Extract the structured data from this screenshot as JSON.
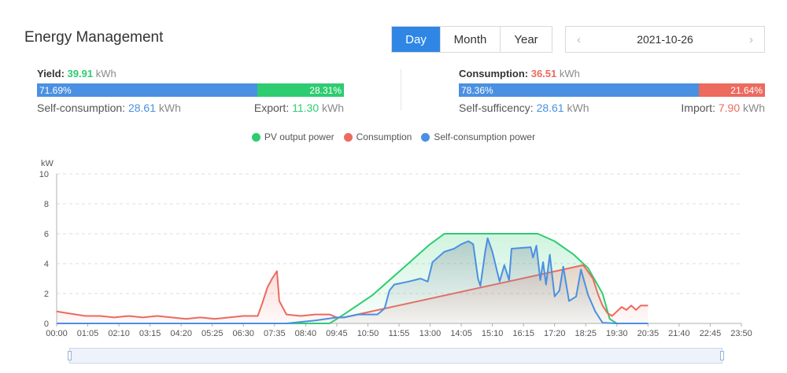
{
  "header": {
    "title": "Energy Management"
  },
  "period_tabs": [
    "Day",
    "Month",
    "Year"
  ],
  "active_tab": "Day",
  "date": {
    "value": "2021-10-26",
    "prev_icon": "chevron-left-icon",
    "next_icon": "chevron-right-icon"
  },
  "yield": {
    "label": "Yield:",
    "value": "39.91",
    "unit": "kWh",
    "self_pct": "71.69%",
    "export_pct": "28.31%",
    "self_fraction": 0.7169,
    "self_label": "Self-consumption:",
    "self_value": "28.61",
    "self_unit": "kWh",
    "export_label": "Export:",
    "export_value": "11.30",
    "export_unit": "kWh"
  },
  "consumption": {
    "label": "Consumption:",
    "value": "36.51",
    "unit": "kWh",
    "self_pct": "78.36%",
    "import_pct": "21.64%",
    "self_fraction": 0.7836,
    "suff_label": "Self-sufficency:",
    "suff_value": "28.61",
    "suff_unit": "kWh",
    "import_label": "Import:",
    "import_value": "7.90",
    "import_unit": "kWh"
  },
  "colors": {
    "green": "#2ecc71",
    "red": "#ec6a5e",
    "blue": "#4a90e2",
    "accent": "#2f86e5"
  },
  "chart_data": {
    "type": "line",
    "ylabel": "kW",
    "ylim": [
      0,
      10
    ],
    "y_ticks": [
      "0",
      "2",
      "4",
      "6",
      "8",
      "10"
    ],
    "x_ticks": [
      "00:00",
      "01:05",
      "02:10",
      "03:15",
      "04:20",
      "05:25",
      "06:30",
      "07:35",
      "08:40",
      "09:45",
      "10:50",
      "11:55",
      "13:00",
      "14:05",
      "15:10",
      "16:15",
      "17:20",
      "18:25",
      "19:30",
      "20:35",
      "21:40",
      "22:45",
      "23:50"
    ],
    "legend": [
      "PV output power",
      "Consumption",
      "Self-consumption power"
    ],
    "series": [
      {
        "name": "PV output power",
        "color": "#2ecc71",
        "points": [
          [
            "00:00",
            0
          ],
          [
            "09:30",
            0
          ],
          [
            "10:00",
            0.6
          ],
          [
            "11:00",
            1.9
          ],
          [
            "12:00",
            3.6
          ],
          [
            "13:00",
            5.3
          ],
          [
            "13:30",
            6.0
          ],
          [
            "16:45",
            6.0
          ],
          [
            "17:20",
            5.5
          ],
          [
            "18:00",
            4.6
          ],
          [
            "18:30",
            3.7
          ],
          [
            "19:00",
            2.0
          ],
          [
            "19:15",
            0.3
          ],
          [
            "19:30",
            0
          ],
          [
            "20:35",
            0
          ]
        ]
      },
      {
        "name": "Consumption",
        "color": "#ec6a5e",
        "points": [
          [
            "00:00",
            0.8
          ],
          [
            "00:20",
            0.7
          ],
          [
            "00:40",
            0.6
          ],
          [
            "01:00",
            0.5
          ],
          [
            "01:30",
            0.5
          ],
          [
            "02:00",
            0.4
          ],
          [
            "02:30",
            0.5
          ],
          [
            "03:00",
            0.4
          ],
          [
            "03:30",
            0.5
          ],
          [
            "04:00",
            0.4
          ],
          [
            "04:30",
            0.3
          ],
          [
            "05:00",
            0.4
          ],
          [
            "05:30",
            0.3
          ],
          [
            "06:00",
            0.4
          ],
          [
            "06:30",
            0.5
          ],
          [
            "07:00",
            0.5
          ],
          [
            "07:10",
            1.4
          ],
          [
            "07:20",
            2.4
          ],
          [
            "07:30",
            3.0
          ],
          [
            "07:40",
            3.5
          ],
          [
            "07:45",
            1.5
          ],
          [
            "08:00",
            0.6
          ],
          [
            "08:30",
            0.5
          ],
          [
            "09:00",
            0.6
          ],
          [
            "09:30",
            0.6
          ],
          [
            "09:45",
            0.4
          ],
          [
            "10:00",
            0.4
          ],
          [
            "18:20",
            3.9
          ],
          [
            "18:40",
            3.0
          ],
          [
            "18:50",
            2.0
          ],
          [
            "19:00",
            1.2
          ],
          [
            "19:10",
            0.7
          ],
          [
            "19:20",
            0.5
          ],
          [
            "19:40",
            1.1
          ],
          [
            "19:50",
            0.9
          ],
          [
            "20:00",
            1.2
          ],
          [
            "20:10",
            0.9
          ],
          [
            "20:20",
            1.2
          ],
          [
            "20:35",
            1.2
          ]
        ]
      },
      {
        "name": "Self-consumption power",
        "color": "#4a90e2",
        "points": [
          [
            "00:00",
            0
          ],
          [
            "08:00",
            0
          ],
          [
            "09:00",
            0.2
          ],
          [
            "09:45",
            0.4
          ],
          [
            "10:00",
            0.4
          ],
          [
            "10:30",
            0.6
          ],
          [
            "11:10",
            0.6
          ],
          [
            "11:25",
            1.0
          ],
          [
            "11:35",
            2.2
          ],
          [
            "11:45",
            2.6
          ],
          [
            "12:15",
            2.8
          ],
          [
            "12:40",
            3.0
          ],
          [
            "12:55",
            2.8
          ],
          [
            "13:05",
            4.1
          ],
          [
            "13:30",
            4.8
          ],
          [
            "13:50",
            5.0
          ],
          [
            "14:05",
            5.3
          ],
          [
            "14:20",
            5.5
          ],
          [
            "14:30",
            5.3
          ],
          [
            "14:40",
            3.0
          ],
          [
            "14:45",
            2.5
          ],
          [
            "14:55",
            4.8
          ],
          [
            "15:00",
            5.7
          ],
          [
            "15:10",
            4.8
          ],
          [
            "15:25",
            2.8
          ],
          [
            "15:35",
            3.9
          ],
          [
            "15:45",
            2.9
          ],
          [
            "15:50",
            5.0
          ],
          [
            "16:30",
            5.1
          ],
          [
            "16:35",
            4.4
          ],
          [
            "16:42",
            5.2
          ],
          [
            "16:50",
            2.9
          ],
          [
            "16:56",
            4.1
          ],
          [
            "17:02",
            2.6
          ],
          [
            "17:10",
            4.6
          ],
          [
            "17:20",
            1.8
          ],
          [
            "17:30",
            2.2
          ],
          [
            "17:38",
            3.8
          ],
          [
            "17:50",
            1.5
          ],
          [
            "18:05",
            1.8
          ],
          [
            "18:15",
            3.6
          ],
          [
            "18:30",
            1.9
          ],
          [
            "18:45",
            0.8
          ],
          [
            "18:55",
            0.3
          ],
          [
            "19:00",
            0.05
          ],
          [
            "19:30",
            0
          ],
          [
            "20:35",
            0
          ]
        ]
      }
    ]
  },
  "zoom_slider": {
    "start_fraction": 0,
    "end_fraction": 1
  }
}
